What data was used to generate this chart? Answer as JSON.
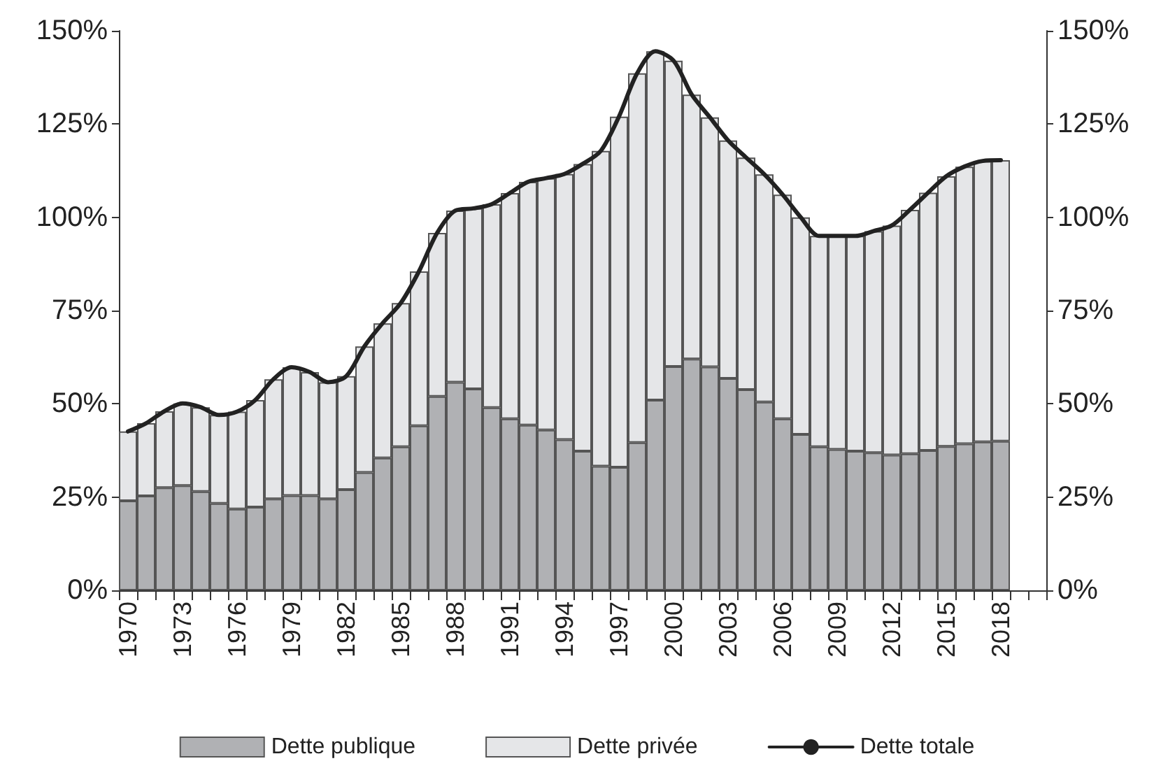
{
  "chart_data": {
    "type": "bar",
    "stacked": true,
    "categories": [
      "1970",
      null,
      null,
      "1973",
      null,
      null,
      "1976",
      null,
      null,
      "1979",
      null,
      null,
      "1982",
      null,
      null,
      "1985",
      null,
      null,
      "1988",
      null,
      null,
      "1991",
      null,
      null,
      "1994",
      null,
      null,
      "1997",
      null,
      null,
      "2000",
      null,
      null,
      "2003",
      null,
      null,
      "2006",
      null,
      null,
      "2009",
      null,
      null,
      "2012",
      null,
      null,
      "2015",
      null,
      null,
      "2018",
      null,
      null
    ],
    "series": [
      {
        "name": "Dette publique",
        "color": "#b0b1b4",
        "values": [
          24.0,
          25.3,
          27.5,
          28.1,
          26.5,
          23.3,
          21.8,
          22.3,
          24.5,
          25.4,
          25.4,
          24.5,
          27.0,
          31.6,
          35.5,
          38.5,
          44.1,
          52.0,
          55.8,
          54.0,
          49.0,
          46.0,
          44.3,
          43.0,
          40.4,
          37.3,
          33.3,
          33.0,
          39.6,
          51.0,
          60.0,
          62.0,
          59.9,
          56.8,
          53.8,
          50.5,
          46.0,
          41.8,
          38.5,
          37.8,
          37.3,
          36.9,
          36.3,
          36.6,
          37.5,
          38.6,
          39.3,
          39.8,
          40.0,
          null,
          null
        ]
      },
      {
        "name": "Dette privée",
        "color": "#e5e6e8",
        "values": [
          18.6,
          19.5,
          20.5,
          22.0,
          22.6,
          23.7,
          26.1,
          28.7,
          32.1,
          34.4,
          33.1,
          31.3,
          30.4,
          33.8,
          36.1,
          38.5,
          41.4,
          43.8,
          46.0,
          48.4,
          54.5,
          60.5,
          65.2,
          67.5,
          71.2,
          77.0,
          84.5,
          94.0,
          99.0,
          93.5,
          82.0,
          70.9,
          66.9,
          63.8,
          62.2,
          61.0,
          60.1,
          58.2,
          56.5,
          57.2,
          57.7,
          59.4,
          61.5,
          65.4,
          69.1,
          72.4,
          74.3,
          75.3,
          75.3,
          null,
          null
        ]
      },
      {
        "name": "Dette totale",
        "type": "line",
        "color": "#222222",
        "values": [
          42.6,
          44.8,
          48.0,
          50.1,
          49.1,
          47.0,
          47.9,
          51.0,
          56.6,
          59.8,
          58.5,
          55.8,
          57.4,
          65.4,
          71.6,
          77.0,
          85.5,
          95.8,
          101.8,
          102.4,
          103.5,
          106.5,
          109.5,
          110.5,
          111.6,
          114.3,
          117.8,
          127.0,
          138.6,
          144.5,
          142.0,
          132.9,
          126.8,
          120.6,
          116.0,
          111.5,
          106.1,
          100.0,
          95.0,
          95.0,
          95.0,
          96.3,
          97.8,
          102.0,
          106.6,
          111.0,
          113.6,
          115.1,
          115.3,
          null,
          null
        ]
      }
    ],
    "ylim": [
      0,
      150
    ],
    "yticks": [
      {
        "value": 0,
        "label": "0%"
      },
      {
        "value": 25,
        "label": "25%"
      },
      {
        "value": 50,
        "label": "50%"
      },
      {
        "value": 75,
        "label": "75%"
      },
      {
        "value": 100,
        "label": "100%"
      },
      {
        "value": 125,
        "label": "125%"
      },
      {
        "value": 150,
        "label": "150%"
      }
    ],
    "y2lim": [
      0,
      150
    ],
    "y2ticks": [
      {
        "value": 0,
        "label": "0%"
      },
      {
        "value": 25,
        "label": "25%"
      },
      {
        "value": 50,
        "label": "50%"
      },
      {
        "value": 75,
        "label": "75%"
      },
      {
        "value": 100,
        "label": "100%"
      },
      {
        "value": 125,
        "label": "125%"
      },
      {
        "value": 150,
        "label": "150%"
      }
    ],
    "grid": false,
    "legend": "bottom",
    "marker": "none",
    "line_style": "solid"
  }
}
